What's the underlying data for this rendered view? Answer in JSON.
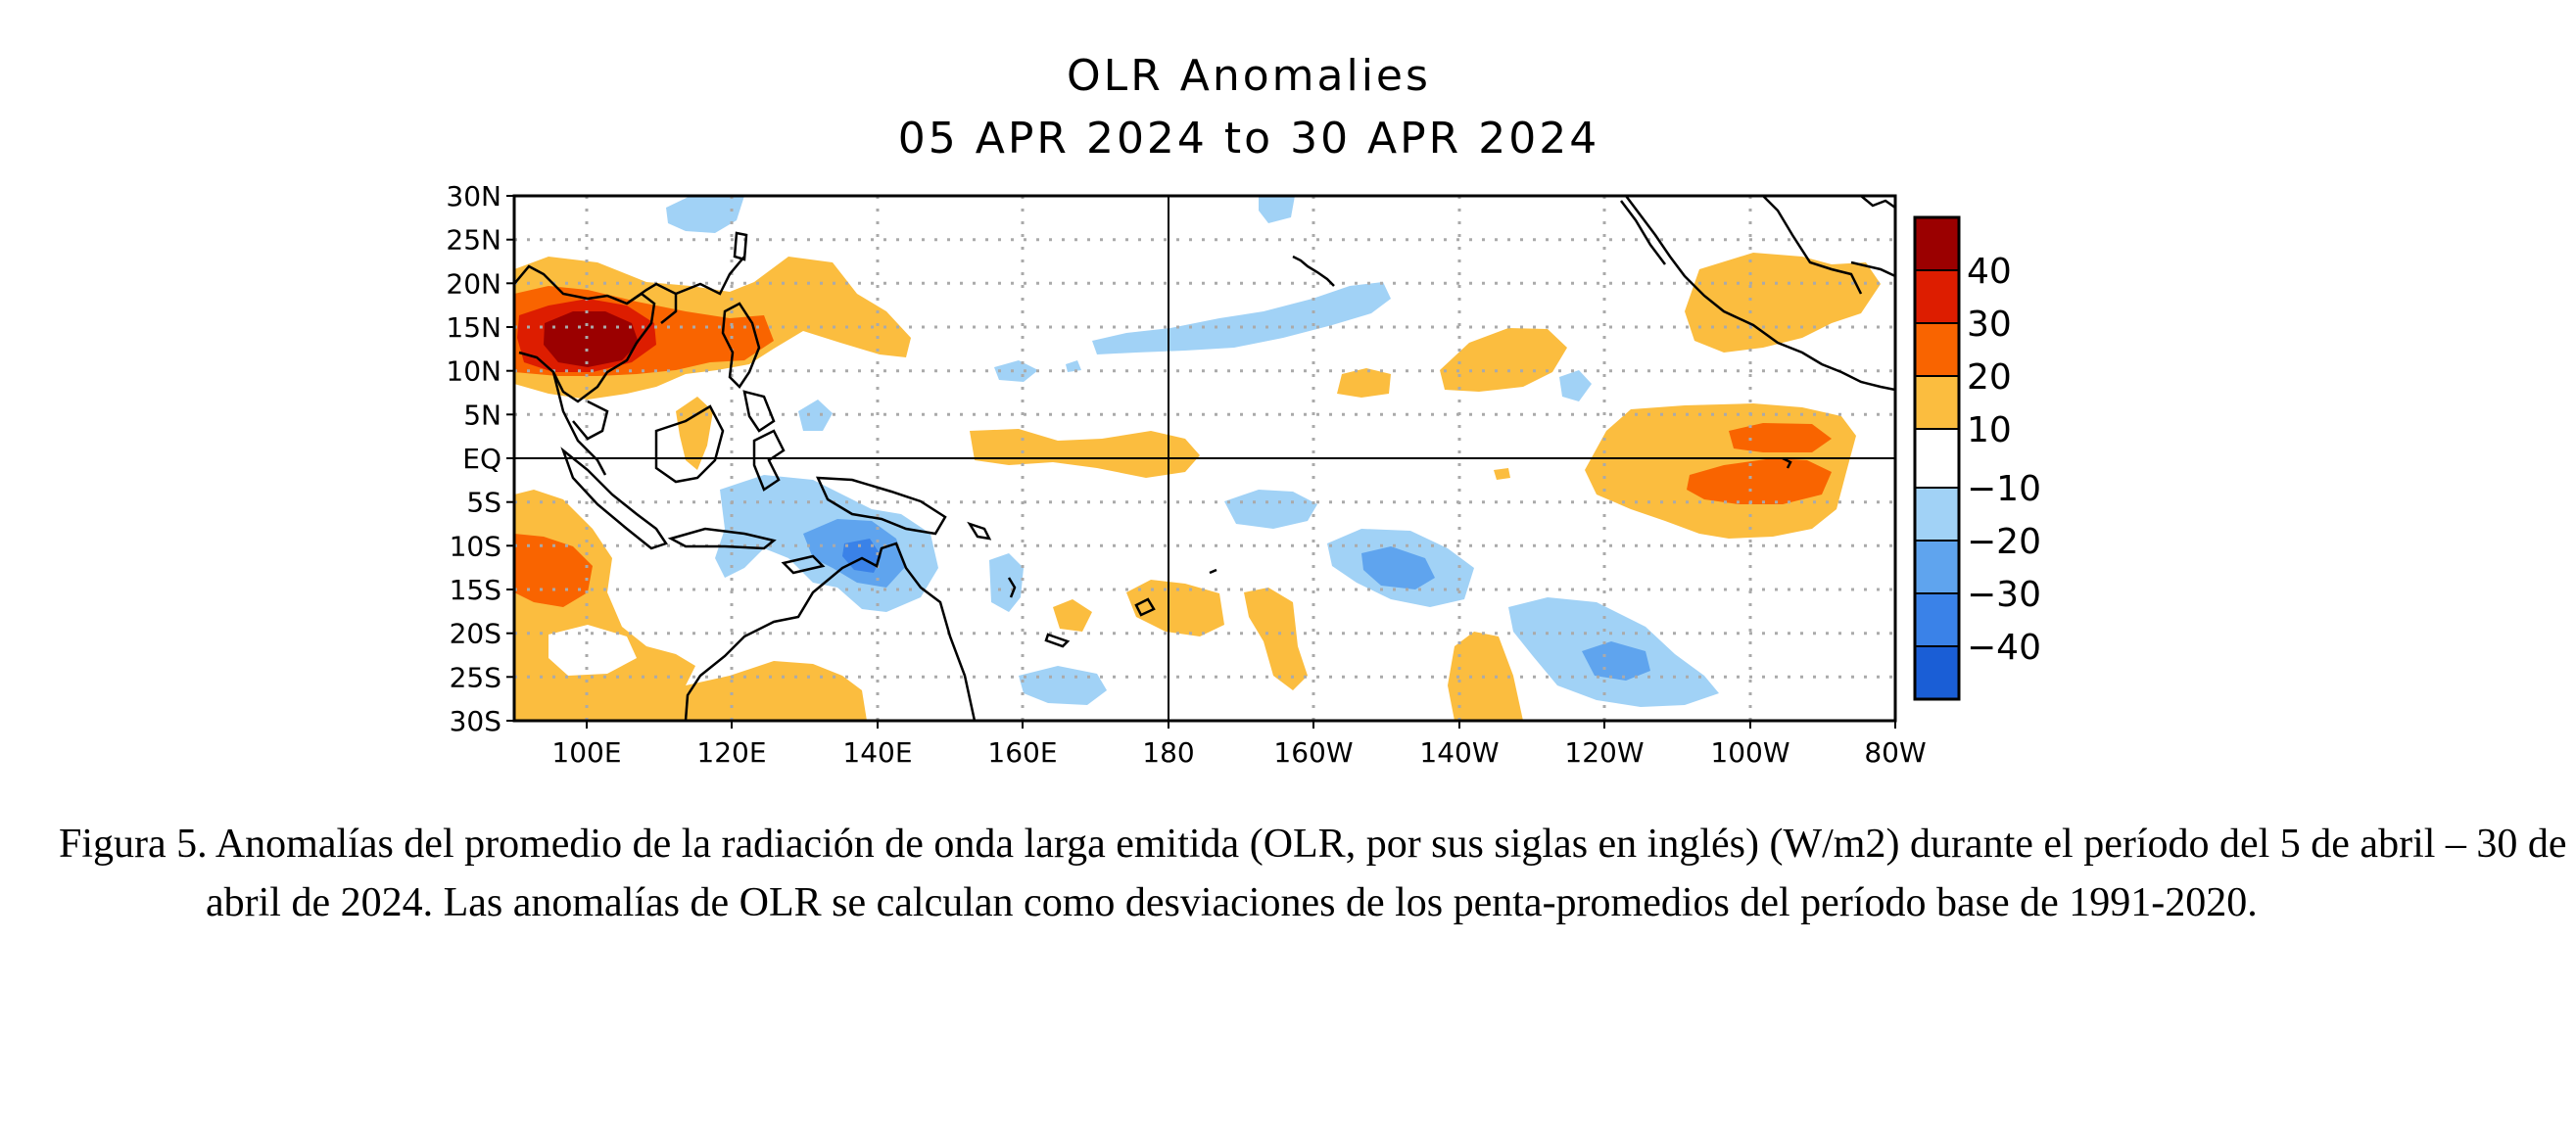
{
  "title": {
    "line1": "OLR Anomalies",
    "line2": "05 APR 2024 to 30 APR 2024"
  },
  "map": {
    "lon_range": [
      "90E",
      "80W"
    ],
    "lat_range": [
      "30S",
      "30N"
    ],
    "lat_ticks": [
      "30N",
      "25N",
      "20N",
      "15N",
      "10N",
      "5N",
      "EQ",
      "5S",
      "10S",
      "15S",
      "20S",
      "25S",
      "30S"
    ],
    "lon_ticks": [
      "100E",
      "120E",
      "140E",
      "160E",
      "180",
      "160W",
      "140W",
      "120W",
      "100W",
      "80W"
    ],
    "gridlines": "dotted",
    "reference_lines": [
      "EQ",
      "180"
    ]
  },
  "colorbar": {
    "labels": [
      "40",
      "30",
      "20",
      "10",
      "−10",
      "−20",
      "−30",
      "−40"
    ],
    "colors": {
      "pos40": "#9b0000",
      "pos30": "#dd1d00",
      "pos20": "#f96400",
      "pos10": "#fbbd3f",
      "neutral": "#ffffff",
      "neg10": "#a1d2f6",
      "neg20": "#5fa4ee",
      "neg30": "#3a82e8",
      "neg40": "#1a5ed6"
    }
  },
  "caption": "Figura 5. Anomalías del promedio de la radiación de onda larga emitida (OLR, por sus siglas en inglés) (W/m2) durante el período del 5 de abril – 30 de abril de 2024.  Las anomalías de OLR se calculan como desviaciones de los penta-promedios del período base de 1991-2020."
}
